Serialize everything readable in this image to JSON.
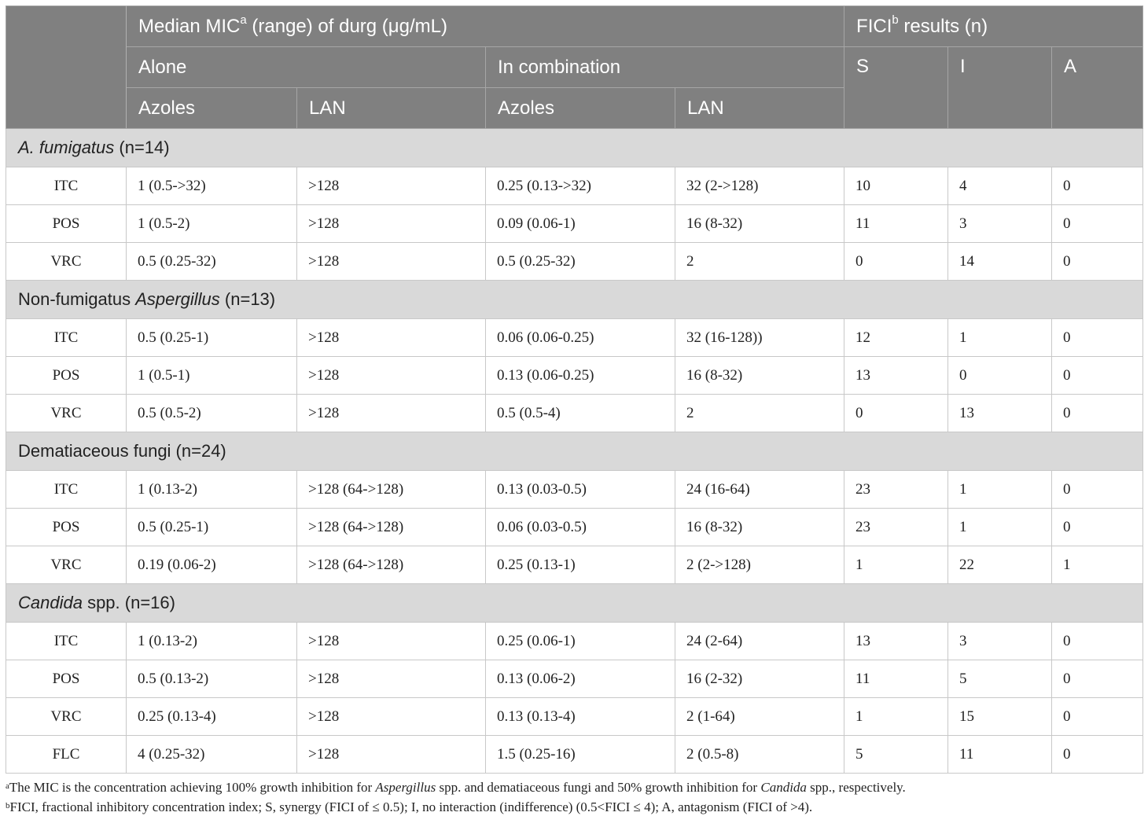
{
  "header": {
    "median_mic_pre": "Median MIC",
    "median_mic_sup": "a",
    "median_mic_post": " (range) of durg (μg/mL)",
    "fici_pre": "FICI",
    "fici_sup": "b",
    "fici_post": " results (n)",
    "alone": "Alone",
    "in_combination": "In combination",
    "azoles_1": "Azoles",
    "lan_1": "LAN",
    "azoles_2": "Azoles",
    "lan_2": "LAN",
    "s": "S",
    "i": "I",
    "a": "A"
  },
  "groups": [
    {
      "label_italic": "A. fumigatus",
      "label_pre": "",
      "label_post": " (n=14)",
      "rows": [
        {
          "drug": "ITC",
          "alone_azoles": "1 (0.5->32)",
          "alone_lan": ">128",
          "comb_azoles": "0.25 (0.13->32)",
          "comb_lan": "32 (2->128)",
          "s": "10",
          "i": "4",
          "a": "0"
        },
        {
          "drug": "POS",
          "alone_azoles": "1 (0.5-2)",
          "alone_lan": ">128",
          "comb_azoles": "0.09 (0.06-1)",
          "comb_lan": "16 (8-32)",
          "s": "11",
          "i": "3",
          "a": "0"
        },
        {
          "drug": "VRC",
          "alone_azoles": "0.5 (0.25-32)",
          "alone_lan": ">128",
          "comb_azoles": "0.5 (0.25-32)",
          "comb_lan": "2",
          "s": "0",
          "i": "14",
          "a": "0"
        }
      ]
    },
    {
      "label_pre": "Non-fumigatus ",
      "label_italic": "Aspergillus",
      "label_post": " (n=13)",
      "rows": [
        {
          "drug": "ITC",
          "alone_azoles": "0.5 (0.25-1)",
          "alone_lan": ">128",
          "comb_azoles": "0.06 (0.06-0.25)",
          "comb_lan": "32 (16-128))",
          "s": "12",
          "i": "1",
          "a": "0"
        },
        {
          "drug": "POS",
          "alone_azoles": "1 (0.5-1)",
          "alone_lan": ">128",
          "comb_azoles": "0.13 (0.06-0.25)",
          "comb_lan": "16 (8-32)",
          "s": "13",
          "i": "0",
          "a": "0"
        },
        {
          "drug": "VRC",
          "alone_azoles": "0.5 (0.5-2)",
          "alone_lan": ">128",
          "comb_azoles": "0.5 (0.5-4)",
          "comb_lan": "2",
          "s": "0",
          "i": "13",
          "a": "0"
        }
      ]
    },
    {
      "label_pre": "Dematiaceous fungi (n=24)",
      "label_italic": "",
      "label_post": "",
      "rows": [
        {
          "drug": "ITC",
          "alone_azoles": "1 (0.13-2)",
          "alone_lan": ">128 (64->128)",
          "comb_azoles": "0.13 (0.03-0.5)",
          "comb_lan": "24 (16-64)",
          "s": "23",
          "i": "1",
          "a": "0"
        },
        {
          "drug": "POS",
          "alone_azoles": "0.5 (0.25-1)",
          "alone_lan": ">128 (64->128)",
          "comb_azoles": "0.06 (0.03-0.5)",
          "comb_lan": "16 (8-32)",
          "s": "23",
          "i": "1",
          "a": "0"
        },
        {
          "drug": "VRC",
          "alone_azoles": "0.19 (0.06-2)",
          "alone_lan": ">128 (64->128)",
          "comb_azoles": "0.25 (0.13-1)",
          "comb_lan": "2 (2->128)",
          "s": "1",
          "i": "22",
          "a": "1"
        }
      ]
    },
    {
      "label_pre": "",
      "label_italic": "Candida",
      "label_post": " spp. (n=16)",
      "rows": [
        {
          "drug": "ITC",
          "alone_azoles": "1 (0.13-2)",
          "alone_lan": ">128",
          "comb_azoles": "0.25 (0.06-1)",
          "comb_lan": "24 (2-64)",
          "s": "13",
          "i": "3",
          "a": "0"
        },
        {
          "drug": "POS",
          "alone_azoles": "0.5 (0.13-2)",
          "alone_lan": ">128",
          "comb_azoles": "0.13 (0.06-2)",
          "comb_lan": "16 (2-32)",
          "s": "11",
          "i": "5",
          "a": "0"
        },
        {
          "drug": "VRC",
          "alone_azoles": "0.25 (0.13-4)",
          "alone_lan": ">128",
          "comb_azoles": "0.13 (0.13-4)",
          "comb_lan": "2 (1-64)",
          "s": "1",
          "i": "15",
          "a": "0"
        },
        {
          "drug": "FLC",
          "alone_azoles": "4 (0.25-32)",
          "alone_lan": ">128",
          "comb_azoles": "1.5 (0.25-16)",
          "comb_lan": "2 (0.5-8)",
          "s": "5",
          "i": "11",
          "a": "0"
        }
      ]
    }
  ],
  "footnotes": {
    "a": {
      "sup": "a",
      "t1": "The MIC is the concentration achieving 100% growth inhibition for ",
      "i1": "Aspergillus",
      "t2": " spp. and dematiaceous fungi and 50% growth inhibition for ",
      "i2": "Candida",
      "t3": " spp., respectively."
    },
    "b": {
      "sup": "b",
      "text": "FICI, fractional inhibitory concentration index; S, synergy (FICI of ≤ 0.5); I, no interaction (indifference) (0.5<FICI ≤ 4); A, antagonism (FICI of >4)."
    }
  }
}
